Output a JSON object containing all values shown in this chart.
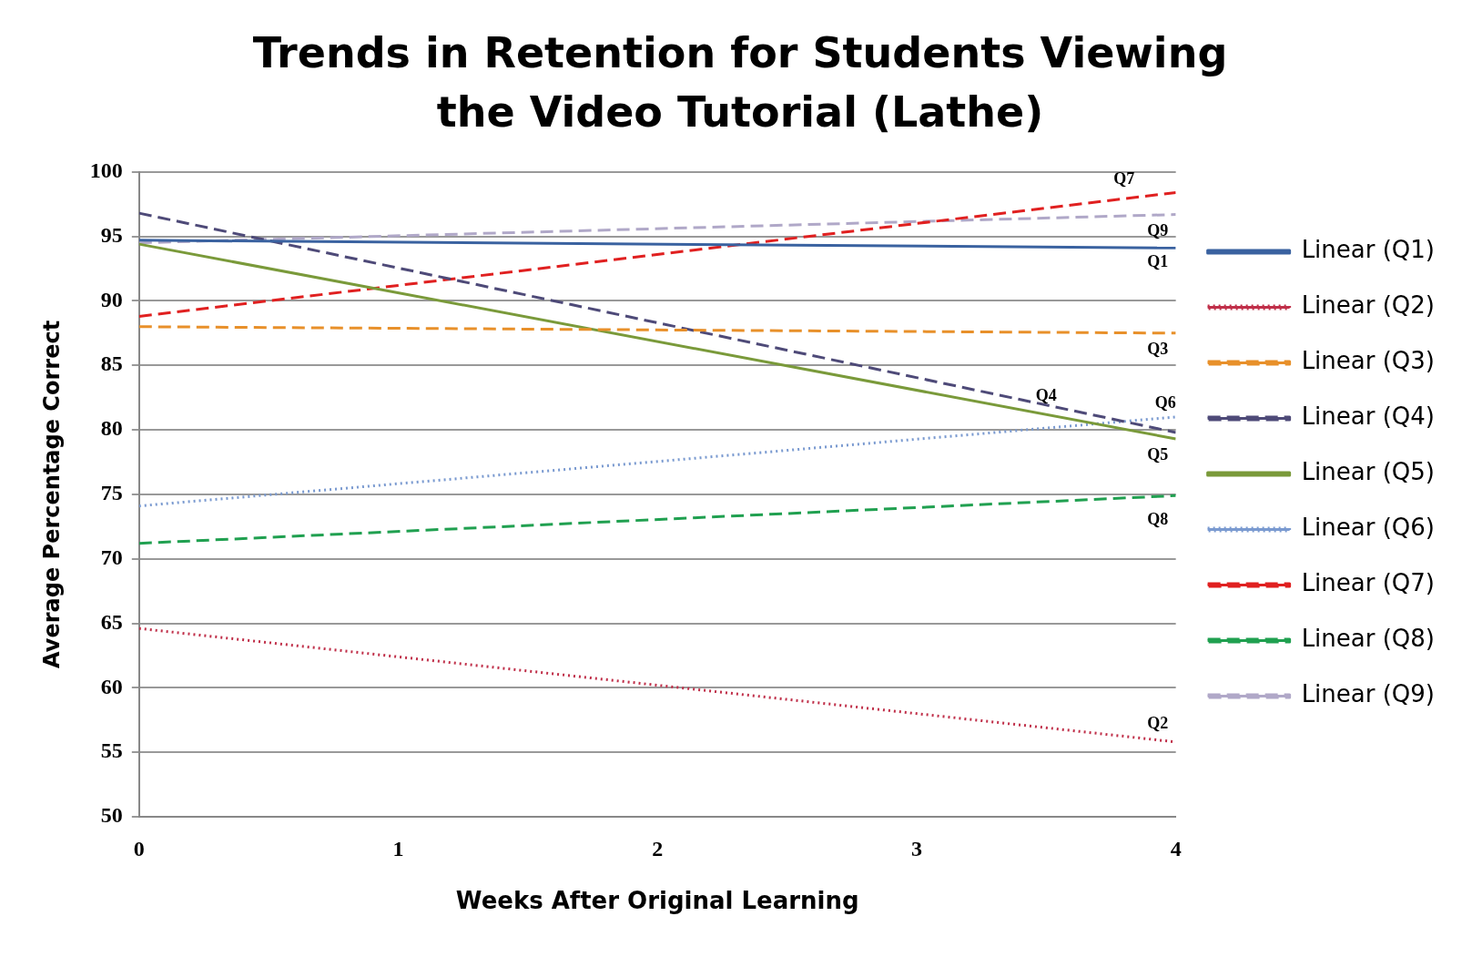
{
  "chart_data": {
    "type": "line",
    "title": "Trends in Retention for Students Viewing the Video Tutorial (Lathe)",
    "xlabel": "Weeks After Original Learning",
    "ylabel": "Average Percentage Correct",
    "x": [
      0,
      4
    ],
    "xlim": [
      0,
      4
    ],
    "xticks": [
      0,
      1,
      2,
      3,
      4
    ],
    "ylim": [
      50,
      100
    ],
    "yticks": [
      50,
      55,
      60,
      65,
      70,
      75,
      80,
      85,
      90,
      95,
      100
    ],
    "grid": "y",
    "legend": "right",
    "marker": "none",
    "series": [
      {
        "name": "Linear (Q1)",
        "color": "#3a62a0",
        "values": [
          94.7,
          94.1
        ],
        "line_style": "solid"
      },
      {
        "name": "Linear (Q2)",
        "color": "#c0304a",
        "values": [
          64.6,
          55.8
        ],
        "line_style": "dotted"
      },
      {
        "name": "Linear (Q3)",
        "color": "#e8902a",
        "values": [
          88.0,
          87.5
        ],
        "line_style": "dashed"
      },
      {
        "name": "Linear (Q4)",
        "color": "#4e4a78",
        "values": [
          96.8,
          79.8
        ],
        "line_style": "dashed"
      },
      {
        "name": "Linear (Q5)",
        "color": "#7a9a3a",
        "values": [
          94.4,
          79.3
        ],
        "line_style": "solid"
      },
      {
        "name": "Linear (Q6)",
        "color": "#7a9ad0",
        "values": [
          74.1,
          81.0
        ],
        "line_style": "dotted"
      },
      {
        "name": "Linear (Q7)",
        "color": "#e02020",
        "values": [
          88.8,
          98.4
        ],
        "line_style": "dashed"
      },
      {
        "name": "Linear (Q8)",
        "color": "#20a050",
        "values": [
          71.2,
          74.9
        ],
        "line_style": "dashed"
      },
      {
        "name": "Linear (Q9)",
        "color": "#b0a8c8",
        "values": [
          94.5,
          96.7
        ],
        "line_style": "dashed"
      }
    ],
    "annotations": [
      "Q7",
      "Q9",
      "Q1",
      "Q3",
      "Q4",
      "Q6",
      "Q5",
      "Q8",
      "Q2"
    ]
  }
}
